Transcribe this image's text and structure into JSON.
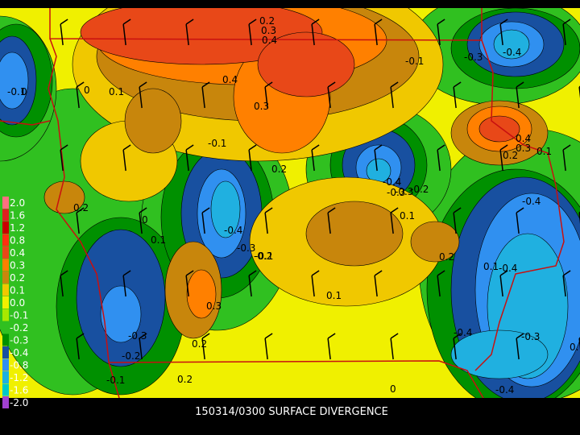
{
  "title": "150314/0300 SURFACE DIVERGENCE",
  "legend": [
    {
      "label": "2.0",
      "color": "#ff7080"
    },
    {
      "label": "1.6",
      "color": "#e02020"
    },
    {
      "label": "1.2",
      "color": "#c80000"
    },
    {
      "label": "0.8",
      "color": "#ff3010"
    },
    {
      "label": "0.4",
      "color": "#e84818"
    },
    {
      "label": "0.3",
      "color": "#ff8000"
    },
    {
      "label": "0.2",
      "color": "#c8860c"
    },
    {
      "label": "0.1",
      "color": "#f0c800"
    },
    {
      "label": "0.0",
      "color": "#f0f000"
    },
    {
      "label": "-0.1",
      "color": "#a8e800"
    },
    {
      "label": "-0.2",
      "color": "#30c020"
    },
    {
      "label": "-0.3",
      "color": "#009000"
    },
    {
      "label": "-0.4",
      "color": "#1850a0"
    },
    {
      "label": "-0.8",
      "color": "#3090f0"
    },
    {
      "label": "-1.2",
      "color": "#20b0e0"
    },
    {
      "label": "-1.6",
      "color": "#00c8c8"
    },
    {
      "label": "-2.0",
      "color": "#a040d0"
    }
  ],
  "contour_labels": [
    "0.2",
    "0.3",
    "0.4",
    "0.4",
    "0.3",
    "0.2",
    "0.1",
    "0",
    "0.1",
    "-0.3",
    "-0.1",
    "0.2",
    "0",
    "0.1",
    "-0.4",
    "-0.3",
    "-0.2",
    "0.1",
    "0.3",
    "0.2",
    "-0.3",
    "-0.2",
    "-0.1",
    "0.2",
    "-0.4",
    "-0.3",
    "-0.2",
    "0.1",
    "0",
    "0.2",
    "-0.1",
    "-0.4",
    "0.4",
    "0.3",
    "0.2",
    "0.1",
    "-0.4",
    "-0.1",
    "-0.3",
    "-0.4",
    "-0.3",
    "0.1",
    "-0.4",
    "0",
    "-0.1",
    "-0.4"
  ]
}
